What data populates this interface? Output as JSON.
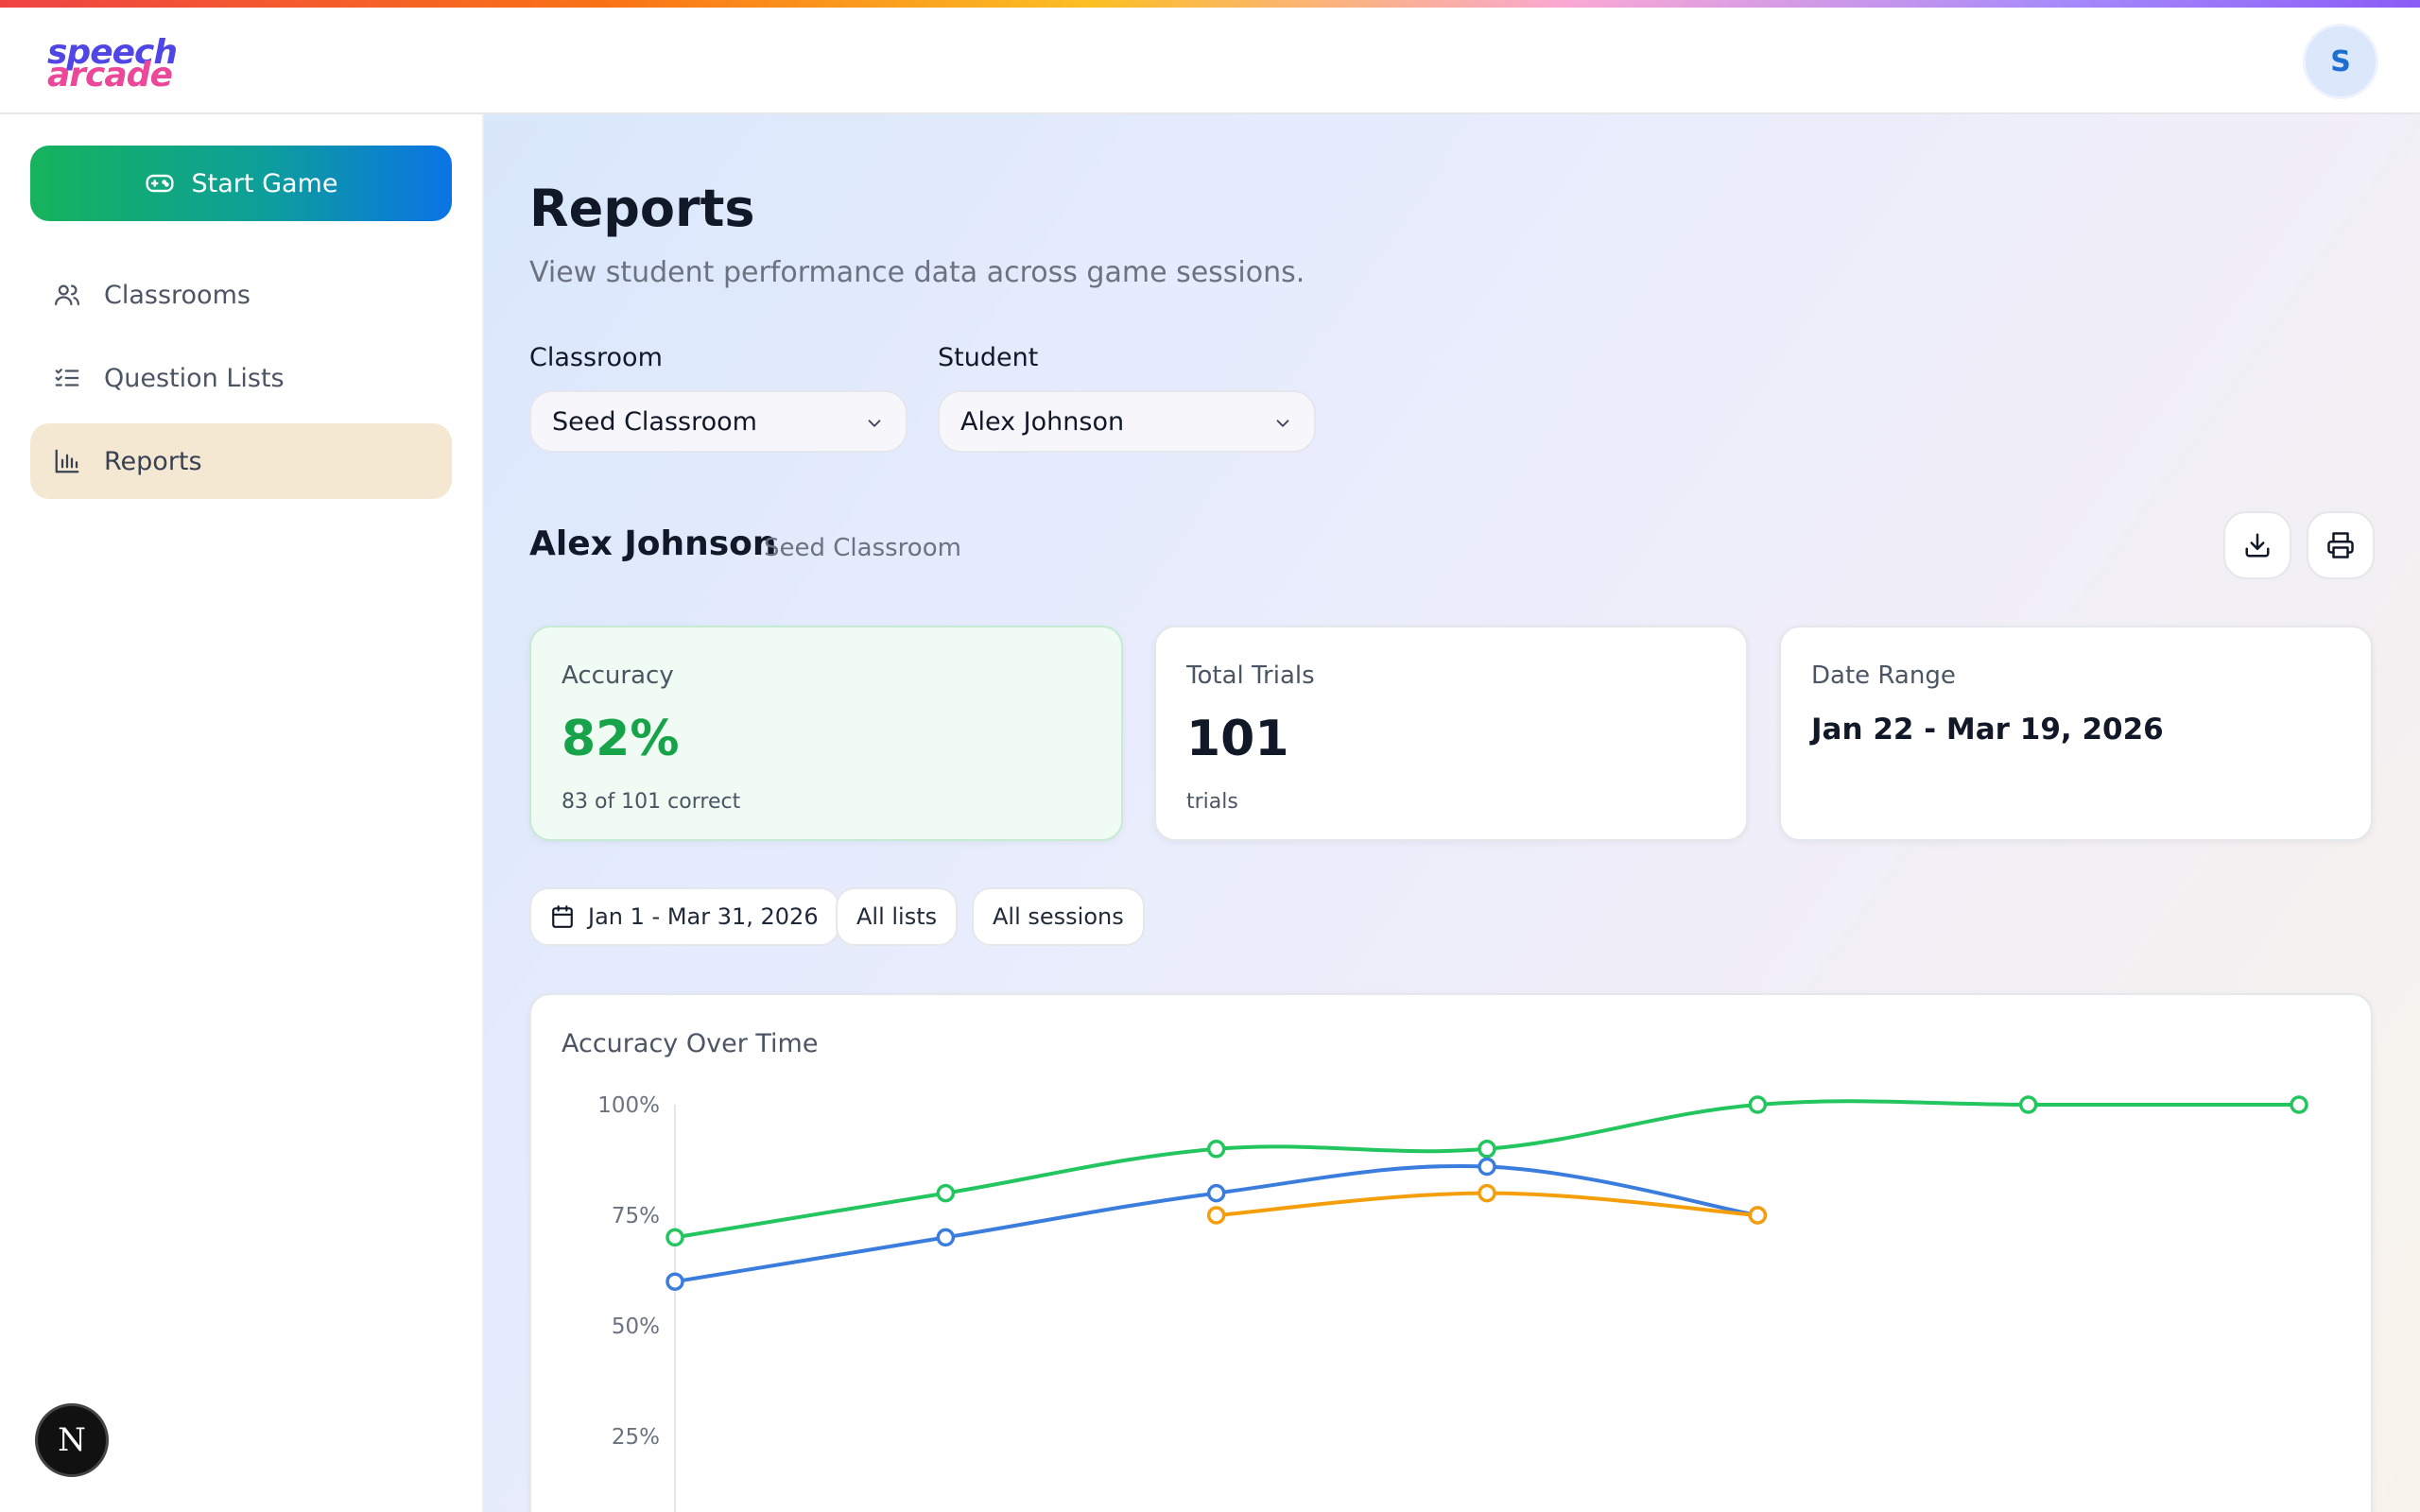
{
  "header": {
    "logo_line1": "speech",
    "logo_line2": "arcade",
    "avatar_initial": "S"
  },
  "sidebar": {
    "start_label": "Start Game",
    "items": [
      {
        "label": "Classrooms",
        "icon": "users-icon"
      },
      {
        "label": "Question Lists",
        "icon": "checklist-icon"
      },
      {
        "label": "Reports",
        "icon": "bar-chart-icon",
        "active": true
      }
    ]
  },
  "page": {
    "title": "Reports",
    "subtitle": "View student performance data across game sessions."
  },
  "filters": {
    "classroom_label": "Classroom",
    "classroom_value": "Seed Classroom",
    "student_label": "Student",
    "student_value": "Alex Johnson"
  },
  "report": {
    "student_name": "Alex Johnson",
    "classroom": "Seed Classroom",
    "download_icon": "download-icon",
    "print_icon": "printer-icon"
  },
  "stats": {
    "accuracy_label": "Accuracy",
    "accuracy_value": "82%",
    "accuracy_sub": "83 of 101 correct",
    "trials_label": "Total Trials",
    "trials_value": "101",
    "trials_sub": "trials",
    "range_label": "Date Range",
    "range_value": "Jan 22 - Mar 19, 2026"
  },
  "chips": {
    "date": "Jan 1 - Mar 31, 2026",
    "lists": "All lists",
    "sessions": "All sessions"
  },
  "dev_badge": "N",
  "colors": {
    "green": "#22c55e",
    "blue": "#3b7ddd",
    "orange": "#f59e0b",
    "accent_green": "#16a34a"
  },
  "chart_data": {
    "type": "line",
    "title": "Accuracy Over Time",
    "y_ticks": [
      "100%",
      "75%",
      "50%",
      "25%"
    ],
    "ylim": [
      0,
      100
    ],
    "grid": false,
    "x": [
      0,
      1,
      2,
      3,
      4,
      5,
      6
    ],
    "series": [
      {
        "color": "#22c55e",
        "values": [
          70,
          80,
          90,
          90,
          100,
          100,
          100
        ]
      },
      {
        "color": "#3b7ddd",
        "values": [
          60,
          70,
          80,
          86,
          75,
          null,
          null
        ]
      },
      {
        "color": "#f59e0b",
        "values": [
          null,
          null,
          75,
          80,
          75,
          null,
          null
        ]
      }
    ]
  }
}
